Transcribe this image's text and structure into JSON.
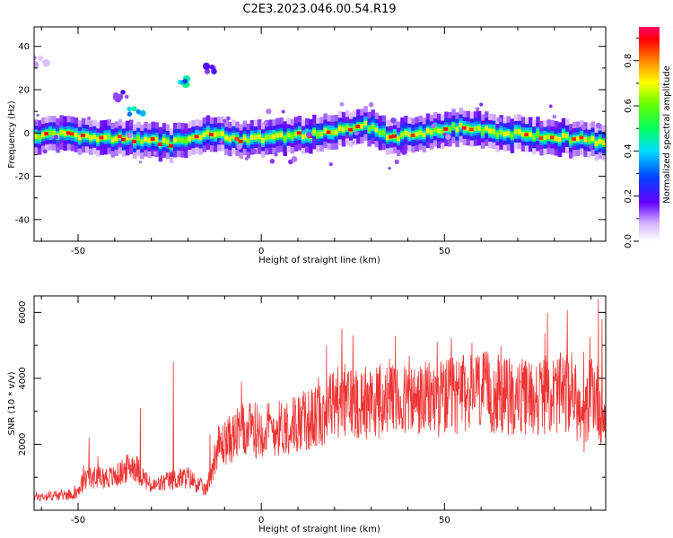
{
  "title": "C2E3.2023.046.00.54.R19",
  "colors": {
    "accent": "#ee3333",
    "axis": "#000000"
  },
  "chart_data": [
    {
      "type": "heatmap",
      "xlabel": "Height of straight line (km)",
      "ylabel": "Frequency (Hz)",
      "xlim": [
        -62,
        94
      ],
      "ylim": [
        -50,
        49
      ],
      "xticks": [
        -50,
        0,
        50
      ],
      "yticks": [
        -40,
        -20,
        0,
        20,
        40
      ],
      "colorbar": {
        "label": "Normalized spectral amplitude",
        "range": [
          0,
          0.95
        ],
        "ticks": [
          0.0,
          0.2,
          0.4,
          0.6,
          0.8
        ]
      },
      "ridge_y": [
        [
          -62,
          -2
        ],
        [
          -55,
          0
        ],
        [
          -45,
          -2
        ],
        [
          -35,
          -3
        ],
        [
          -25,
          -5
        ],
        [
          -15,
          0
        ],
        [
          -5,
          -3
        ],
        [
          5,
          -2
        ],
        [
          15,
          0
        ],
        [
          25,
          3
        ],
        [
          27,
          4
        ],
        [
          35,
          -2
        ],
        [
          45,
          0
        ],
        [
          55,
          3
        ],
        [
          65,
          0
        ],
        [
          75,
          -1
        ],
        [
          85,
          -3
        ],
        [
          94,
          -4
        ]
      ],
      "scatter_blobs": [
        {
          "x": -14,
          "y": 30,
          "amp": 0.2
        },
        {
          "x": -22,
          "y": 23,
          "amp": 0.5
        },
        {
          "x": -34,
          "y": 10,
          "amp": 0.45
        },
        {
          "x": -38,
          "y": 17,
          "amp": 0.2
        },
        {
          "x": -60,
          "y": 33,
          "amp": 0.1
        }
      ]
    },
    {
      "type": "line",
      "xlabel": "Height of straight line (km)",
      "ylabel": "SNR (10 * v/v)",
      "xlim": [
        -62,
        94
      ],
      "ylim": [
        0,
        6500
      ],
      "xticks": [
        -50,
        0,
        50
      ],
      "yticks": [
        2000,
        4000,
        6000
      ],
      "series": [
        {
          "envelope": [
            [
              -62,
              400
            ],
            [
              -50,
              500
            ],
            [
              -48,
              1000
            ],
            [
              -40,
              1000
            ],
            [
              -35,
              1400
            ],
            [
              -30,
              700
            ],
            [
              -25,
              900
            ],
            [
              -20,
              1000
            ],
            [
              -15,
              600
            ],
            [
              -12,
              1900
            ],
            [
              -5,
              2400
            ],
            [
              5,
              2500
            ],
            [
              15,
              2800
            ],
            [
              20,
              3300
            ],
            [
              30,
              3300
            ],
            [
              40,
              3300
            ],
            [
              50,
              3400
            ],
            [
              60,
              3600
            ],
            [
              70,
              3400
            ],
            [
              80,
              3500
            ],
            [
              85,
              3600
            ],
            [
              88,
              2500
            ],
            [
              90,
              3800
            ],
            [
              94,
              2700
            ]
          ],
          "spikes": [
            [
              -24,
              4500
            ],
            [
              -33,
              3100
            ],
            [
              -47,
              2200
            ],
            [
              -14,
              2300
            ],
            [
              22,
              5500
            ],
            [
              25,
              5300
            ],
            [
              35,
              4600
            ],
            [
              48,
              5100
            ],
            [
              59,
              4700
            ],
            [
              65,
              4200
            ],
            [
              88,
              4800
            ],
            [
              92,
              6400
            ],
            [
              93,
              5800
            ]
          ]
        }
      ]
    }
  ]
}
